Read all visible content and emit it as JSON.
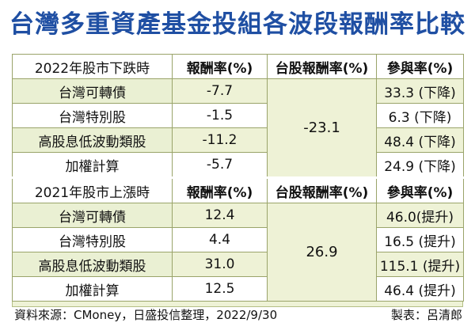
{
  "title": "台灣多重資產基金投組各波段報酬率比較",
  "section1": {
    "header": [
      "2022年股市下跌時",
      "報酬率(%)",
      "台股報酬率(%)",
      "參與率(%)"
    ],
    "rows": [
      {
        "name": "台灣可轉債",
        "ret": "-7.7",
        "part": "33.3 (下降)"
      },
      {
        "name": "台灣特別股",
        "ret": "-1.5",
        "part": "6.3 (下降)"
      },
      {
        "name": "高股息低波動類股",
        "ret": "-11.2",
        "part": "48.4 (下降)"
      },
      {
        "name": "加權計算",
        "ret": "-5.7",
        "part": "24.9 (下降)"
      }
    ],
    "tw_return": "-23.1"
  },
  "section2": {
    "header": [
      "2021年股市上漲時",
      "報酬率(%)",
      "台股報酬率(%)",
      "參與率(%)"
    ],
    "rows": [
      {
        "name": "台灣可轉債",
        "ret": "12.4",
        "part": "46.0(提升)"
      },
      {
        "name": "台灣特別股",
        "ret": "4.4",
        "part": "16.5 (提升)"
      },
      {
        "name": "高股息低波動類股",
        "ret": "31.0",
        "part": "115.1 (提升)"
      },
      {
        "name": "加權計算",
        "ret": "12.5",
        "part": "46.4 (提升)"
      }
    ],
    "tw_return": "26.9"
  },
  "footer": {
    "source": "資料來源：CMoney，日盛投信整理，2022/9/30",
    "maker": "製表：呂清郎"
  }
}
